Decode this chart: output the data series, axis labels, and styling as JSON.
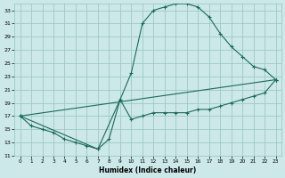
{
  "xlabel": "Humidex (Indice chaleur)",
  "bg_color": "#cce8e8",
  "grid_color": "#9dc8c8",
  "line_color": "#1a6b5a",
  "xlim": [
    -0.5,
    23.5
  ],
  "ylim": [
    11,
    34
  ],
  "yticks": [
    11,
    13,
    15,
    17,
    19,
    21,
    23,
    25,
    27,
    29,
    31,
    33
  ],
  "xticks": [
    0,
    1,
    2,
    3,
    4,
    5,
    6,
    7,
    8,
    9,
    10,
    11,
    12,
    13,
    14,
    15,
    16,
    17,
    18,
    19,
    20,
    21,
    22,
    23
  ],
  "curve1_x": [
    0,
    1,
    2,
    3,
    4,
    5,
    6,
    7,
    8,
    9,
    10,
    11,
    12,
    13,
    14,
    15,
    16,
    17,
    18,
    19,
    20,
    21,
    22,
    23
  ],
  "curve1_y": [
    17,
    15.5,
    15,
    14.5,
    13.5,
    13,
    12.5,
    12,
    13.5,
    19.5,
    23.5,
    31,
    33,
    33.5,
    34,
    34,
    33.5,
    32,
    29.5,
    27.5,
    26,
    24.5,
    24,
    22.5
  ],
  "curve2_x": [
    0,
    23
  ],
  "curve2_y": [
    17,
    22.5
  ],
  "curve3_x": [
    0,
    7,
    9,
    10,
    11,
    12,
    13,
    14,
    15,
    16,
    17,
    18,
    19,
    20,
    21,
    22,
    23
  ],
  "curve3_y": [
    17,
    12,
    19.5,
    16.5,
    17,
    17.5,
    17.5,
    17.5,
    17.5,
    18,
    18,
    18.5,
    19,
    19.5,
    20,
    20.5,
    22.5
  ]
}
